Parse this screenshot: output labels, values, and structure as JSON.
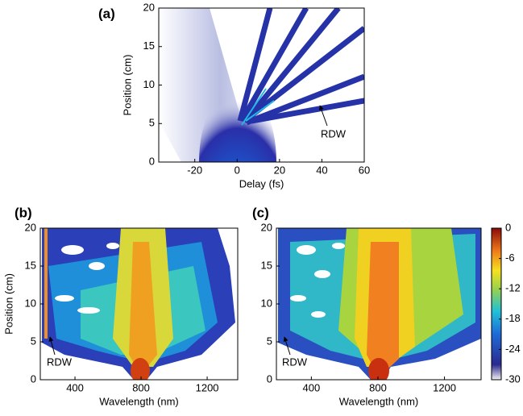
{
  "chart_data": [
    {
      "type": "heatmap",
      "panel_label": "(a)",
      "xlabel": "Delay (fs)",
      "ylabel": "Position (cm)",
      "xlim": [
        -37,
        60
      ],
      "xticks": [
        -20,
        0,
        20,
        40,
        60
      ],
      "ylim": [
        0,
        20
      ],
      "yticks": [
        0,
        5,
        10,
        15,
        20
      ],
      "annotation": "RDW"
    },
    {
      "type": "heatmap",
      "panel_label": "(b)",
      "xlabel": "Wavelength (nm)",
      "ylabel": "Position (cm)",
      "xlim": [
        190,
        1385
      ],
      "xticks": [
        400,
        800,
        1200
      ],
      "ylim": [
        0,
        20
      ],
      "yticks": [
        0,
        5,
        10,
        15,
        20
      ],
      "annotation": "RDW"
    },
    {
      "type": "heatmap",
      "panel_label": "(c)",
      "xlabel": "Wavelength (nm)",
      "xlim": [
        190,
        1420
      ],
      "xticks": [
        400,
        800,
        1200
      ],
      "ylim": [
        0,
        20
      ],
      "yticks": [
        0,
        5,
        10,
        15,
        20
      ],
      "annotation": "RDW",
      "colorbar": {
        "lim": [
          -30,
          0
        ],
        "ticks": [
          0,
          -6,
          -12,
          -18,
          -24,
          -30
        ]
      }
    }
  ]
}
